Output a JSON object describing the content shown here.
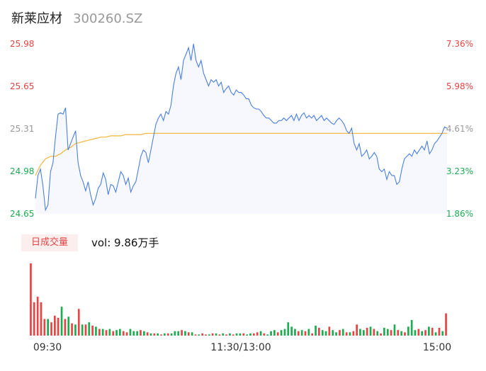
{
  "header": {
    "name": "新莱应材",
    "code": "300260.SZ"
  },
  "volume_panel": {
    "badge": "日成交量",
    "vol_label": "vol: 9.86万手"
  },
  "colors": {
    "up": "#e64545",
    "down": "#1fab52",
    "neutral": "#999999",
    "price_line": "#4a7fe0",
    "avg_line": "#f2b43a",
    "area_fill": "#f6f8fd"
  },
  "chart_data": [
    {
      "type": "line",
      "title": "",
      "y_ticks_left": [
        "25.98",
        "25.65",
        "25.31",
        "24.98",
        "24.65"
      ],
      "y_ticks_right": [
        "7.36%",
        "5.98%",
        "4.61%",
        "3.23%",
        "1.86%"
      ],
      "x_ticks": [
        "09:30",
        "11:30/13:00",
        "15:00"
      ],
      "ylim": [
        24.65,
        25.98
      ],
      "series": [
        {
          "values": [
            24.77,
            24.95,
            25.0,
            24.87,
            24.68,
            24.72,
            24.98,
            25.05,
            25.25,
            25.43,
            25.44,
            25.43,
            25.48,
            25.15,
            25.2,
            25.25,
            25.3,
            25.05,
            24.95,
            24.9,
            24.83,
            24.9,
            24.8,
            24.72,
            24.77,
            24.85,
            24.88,
            24.97,
            24.92,
            24.8,
            24.88,
            24.87,
            24.82,
            24.9,
            24.98,
            24.95,
            24.88,
            24.93,
            24.82,
            24.87,
            24.9,
            25.0,
            25.1,
            25.15,
            25.13,
            25.05,
            25.15,
            25.25,
            25.35,
            25.4,
            25.43,
            25.38,
            25.45,
            25.43,
            25.5,
            25.65,
            25.75,
            25.8,
            25.7,
            25.85,
            25.9,
            25.95,
            25.85,
            25.98,
            25.85,
            25.8,
            25.85,
            25.75,
            25.7,
            25.65,
            25.7,
            25.68,
            25.7,
            25.65,
            25.68,
            25.6,
            25.63,
            25.65,
            25.6,
            25.58,
            25.62,
            25.6,
            25.6,
            25.58,
            25.55,
            25.55,
            25.5,
            25.48,
            25.47,
            25.47,
            25.45,
            25.42,
            25.4,
            25.4,
            25.38,
            25.36,
            25.36,
            25.38,
            25.38,
            25.4,
            25.38,
            25.4,
            25.42,
            25.38,
            25.43,
            25.38,
            25.42,
            25.44,
            25.4,
            25.42,
            25.4,
            25.42,
            25.38,
            25.4,
            25.42,
            25.38,
            25.4,
            25.38,
            25.36,
            25.35,
            25.38,
            25.4,
            25.38,
            25.35,
            25.3,
            25.28,
            25.32,
            25.2,
            25.15,
            25.2,
            25.1,
            25.12,
            25.15,
            25.08,
            25.1,
            25.13,
            25.1,
            25.0,
            24.98,
            25.0,
            24.92,
            24.98,
            24.95,
            24.95,
            24.88,
            24.9,
            25.0,
            25.08,
            25.1,
            25.12,
            25.1,
            25.15,
            25.12,
            25.15,
            25.18,
            25.15,
            25.22,
            25.12,
            25.15,
            25.2,
            25.22,
            25.25,
            25.28,
            25.33,
            25.32
          ]
        },
        {
          "values": [
            24.95,
            25.03,
            25.08,
            25.1,
            25.1,
            25.12,
            25.15,
            25.17,
            25.2,
            25.21,
            25.22,
            25.23,
            25.24,
            25.25,
            25.25,
            25.26,
            25.26,
            25.26,
            25.27,
            25.27,
            25.27,
            25.27,
            25.28,
            25.28,
            25.28,
            25.28,
            25.28,
            25.28,
            25.28,
            25.28,
            25.28,
            25.28,
            25.28,
            25.28,
            25.28,
            25.28,
            25.28,
            25.28,
            25.28,
            25.28,
            25.28,
            25.28,
            25.28,
            25.28,
            25.28,
            25.28,
            25.28,
            25.28,
            25.28,
            25.28,
            25.28,
            25.28,
            25.28,
            25.28,
            25.28,
            25.28,
            25.28,
            25.28,
            25.28,
            25.28,
            25.28,
            25.28,
            25.28,
            25.28,
            25.28,
            25.28,
            25.28,
            25.28,
            25.28,
            25.28,
            25.28,
            25.28,
            25.28,
            25.28,
            25.28,
            25.28,
            25.28,
            25.28,
            25.28,
            25.28,
            25.28,
            25.28,
            25.28
          ]
        }
      ]
    },
    {
      "type": "bar",
      "title": "",
      "xlim": [
        "09:30",
        "15:00"
      ],
      "volumes": [
        65,
        30,
        35,
        30,
        15,
        15,
        12,
        18,
        16,
        26,
        15,
        17,
        11,
        10,
        24,
        10,
        10,
        12,
        9,
        8,
        6,
        6,
        5,
        6,
        4,
        5,
        6,
        4,
        3,
        6,
        4,
        4,
        5,
        4,
        3,
        2,
        2,
        2,
        1,
        2,
        2,
        2,
        4,
        4,
        5,
        4,
        3,
        3,
        1,
        1,
        2,
        1,
        1,
        2,
        2,
        1,
        2,
        1,
        2,
        1,
        2,
        2,
        2,
        1,
        2,
        2,
        3,
        4,
        2,
        1,
        4,
        5,
        3,
        5,
        6,
        12,
        8,
        6,
        4,
        5,
        4,
        6,
        2,
        9,
        7,
        5,
        4,
        8,
        5,
        3,
        5,
        6,
        3,
        3,
        4,
        10,
        6,
        5,
        7,
        8,
        6,
        4,
        2,
        7,
        6,
        5,
        10,
        5,
        4,
        3,
        8,
        14,
        5,
        6,
        4,
        5,
        8,
        7,
        3,
        7,
        4,
        20
      ],
      "up": [
        1,
        1,
        1,
        1,
        1,
        0,
        1,
        1,
        1,
        0,
        1,
        0,
        1,
        0,
        1,
        0,
        1,
        0,
        1,
        0,
        1,
        0,
        1,
        0,
        1,
        0,
        0,
        1,
        1,
        0,
        0,
        0,
        1,
        0,
        1,
        0,
        1,
        0,
        1,
        0,
        1,
        0,
        0,
        0,
        1,
        0,
        1,
        0,
        1,
        0,
        1,
        1,
        0,
        1,
        0,
        1,
        0,
        1,
        0,
        1,
        0,
        0,
        1,
        0,
        0,
        1,
        1,
        0,
        1,
        0,
        0,
        0,
        1,
        0,
        0,
        0,
        0,
        0,
        1,
        0,
        1,
        0,
        1,
        0,
        1,
        0,
        0,
        1,
        0,
        0,
        1,
        0,
        1,
        0,
        1,
        1,
        0,
        0,
        1,
        0,
        1,
        0,
        1,
        0,
        0,
        1,
        0,
        1,
        0,
        1,
        0,
        0,
        0,
        1,
        0,
        1,
        0,
        1,
        0,
        1,
        0,
        1
      ]
    }
  ]
}
